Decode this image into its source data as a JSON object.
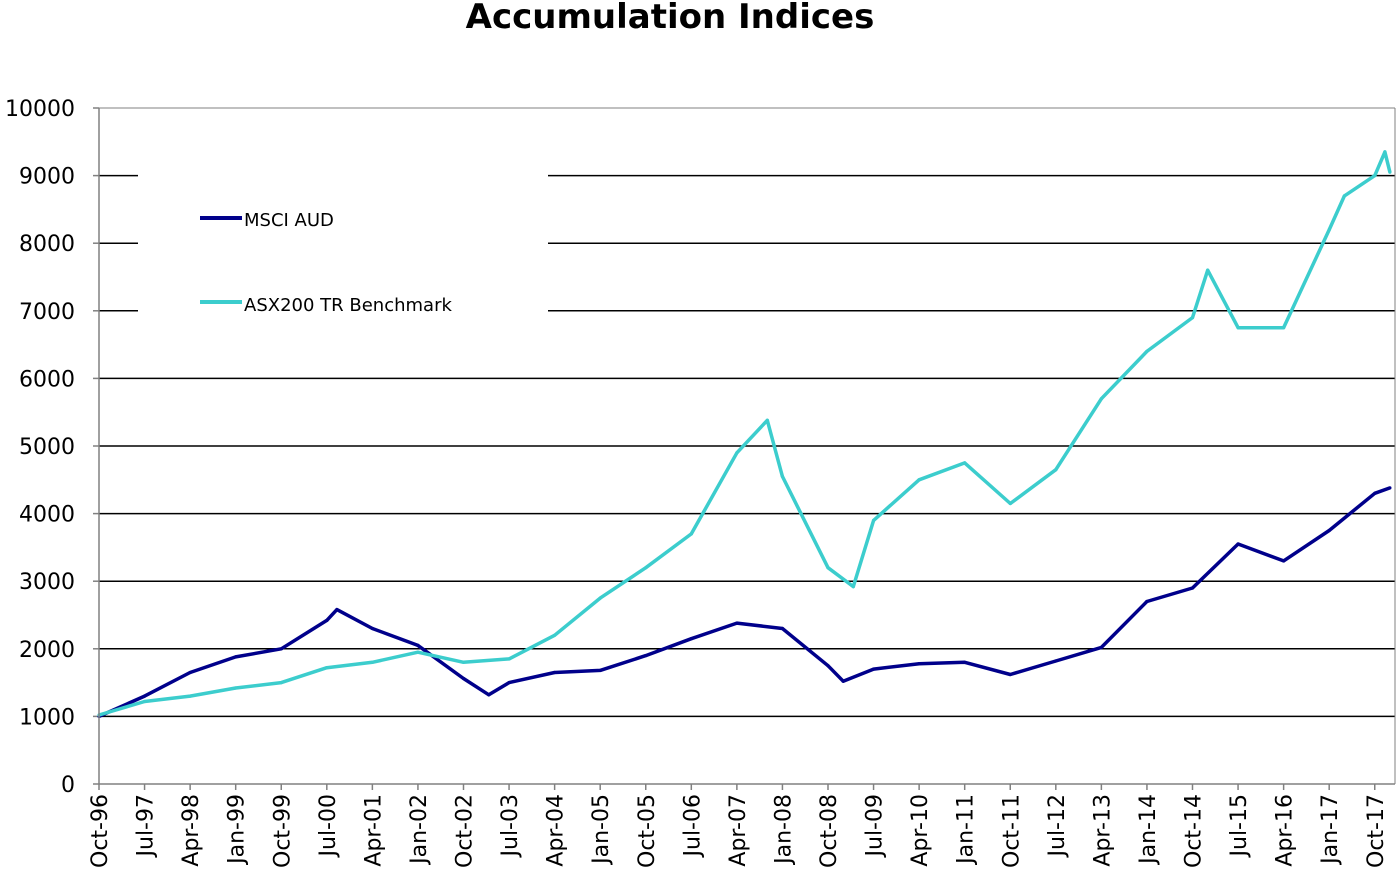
{
  "chart_data": {
    "type": "line",
    "title": "Accumulation Indices",
    "xlabel": "",
    "ylabel": "",
    "ylim": [
      0,
      10000
    ],
    "y_ticks": [
      0,
      1000,
      2000,
      3000,
      4000,
      5000,
      6000,
      7000,
      8000,
      9000,
      10000
    ],
    "x_tick_labels": [
      "Oct-96",
      "Jul-97",
      "Apr-98",
      "Jan-99",
      "Oct-99",
      "Jul-00",
      "Apr-01",
      "Jan-02",
      "Oct-02",
      "Jul-03",
      "Apr-04",
      "Jan-05",
      "Oct-05",
      "Jul-06",
      "Apr-07",
      "Jan-08",
      "Oct-08",
      "Jul-09",
      "Apr-10",
      "Jan-11",
      "Oct-11",
      "Jul-12",
      "Apr-13",
      "Jan-14",
      "Oct-14",
      "Jul-15",
      "Apr-16",
      "Jan-17",
      "Oct-17"
    ],
    "grid": "horizontal",
    "legend_position": "top-left",
    "series": [
      {
        "name": "MSCI AUD",
        "color": "#00008B",
        "points": [
          [
            "Oct-96",
            1000
          ],
          [
            "Jul-97",
            1300
          ],
          [
            "Apr-98",
            1650
          ],
          [
            "Jan-99",
            1880
          ],
          [
            "Oct-99",
            2000
          ],
          [
            "Jul-00",
            2420
          ],
          [
            "Sep-00",
            2580
          ],
          [
            "Apr-01",
            2300
          ],
          [
            "Jan-02",
            2050
          ],
          [
            "Oct-02",
            1560
          ],
          [
            "Mar-03",
            1320
          ],
          [
            "Jul-03",
            1500
          ],
          [
            "Apr-04",
            1650
          ],
          [
            "Jan-05",
            1680
          ],
          [
            "Oct-05",
            1900
          ],
          [
            "Jul-06",
            2150
          ],
          [
            "Apr-07",
            2380
          ],
          [
            "Jan-08",
            2300
          ],
          [
            "Oct-08",
            1750
          ],
          [
            "Jan-09",
            1520
          ],
          [
            "Jul-09",
            1700
          ],
          [
            "Apr-10",
            1780
          ],
          [
            "Jan-11",
            1800
          ],
          [
            "Oct-11",
            1620
          ],
          [
            "Jul-12",
            1820
          ],
          [
            "Apr-13",
            2020
          ],
          [
            "Jan-14",
            2700
          ],
          [
            "Oct-14",
            2900
          ],
          [
            "Jul-15",
            3550
          ],
          [
            "Apr-16",
            3300
          ],
          [
            "Jan-17",
            3750
          ],
          [
            "Oct-17",
            4300
          ],
          [
            "Jan-18",
            4380
          ]
        ]
      },
      {
        "name": "ASX200 TR Benchmark",
        "color": "#3CCDCD",
        "points": [
          [
            "Oct-96",
            1020
          ],
          [
            "Jul-97",
            1220
          ],
          [
            "Apr-98",
            1300
          ],
          [
            "Jan-99",
            1420
          ],
          [
            "Oct-99",
            1500
          ],
          [
            "Jul-00",
            1720
          ],
          [
            "Apr-01",
            1800
          ],
          [
            "Jan-02",
            1950
          ],
          [
            "Oct-02",
            1800
          ],
          [
            "Jul-03",
            1850
          ],
          [
            "Apr-04",
            2200
          ],
          [
            "Jan-05",
            2750
          ],
          [
            "Oct-05",
            3200
          ],
          [
            "Jul-06",
            3700
          ],
          [
            "Apr-07",
            4900
          ],
          [
            "Oct-07",
            5380
          ],
          [
            "Jan-08",
            4550
          ],
          [
            "Oct-08",
            3200
          ],
          [
            "Mar-09",
            2920
          ],
          [
            "Jul-09",
            3900
          ],
          [
            "Apr-10",
            4500
          ],
          [
            "Jan-11",
            4750
          ],
          [
            "Oct-11",
            4150
          ],
          [
            "Jul-12",
            4650
          ],
          [
            "Apr-13",
            5700
          ],
          [
            "Jan-14",
            6400
          ],
          [
            "Oct-14",
            6900
          ],
          [
            "Jan-15",
            7600
          ],
          [
            "Jul-15",
            6750
          ],
          [
            "Apr-16",
            6750
          ],
          [
            "Jan-17",
            8200
          ],
          [
            "Apr-17",
            8700
          ],
          [
            "Oct-17",
            9000
          ],
          [
            "Dec-17",
            9350
          ],
          [
            "Jan-18",
            9050
          ]
        ]
      }
    ]
  }
}
